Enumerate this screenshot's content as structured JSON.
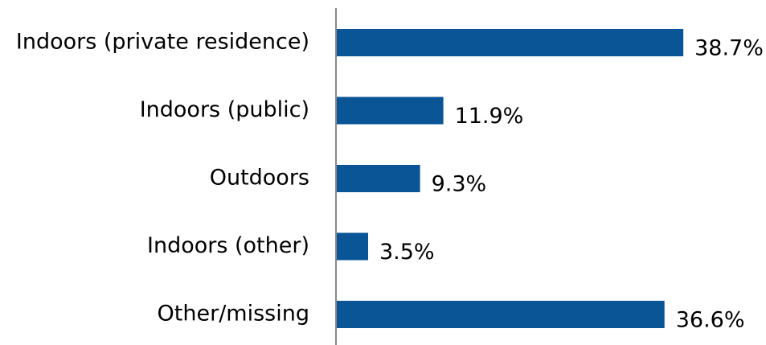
{
  "chart_data": {
    "type": "bar",
    "orientation": "horizontal",
    "categories": [
      "Indoors (private residence)",
      "Indoors (public)",
      "Outdoors",
      "Indoors (other)",
      "Other/missing"
    ],
    "values": [
      38.7,
      11.9,
      9.3,
      3.5,
      36.6
    ],
    "value_labels": [
      "38.7%",
      "11.9%",
      "9.3%",
      "3.5%",
      "36.6%"
    ],
    "color": "#0a5596"
  }
}
